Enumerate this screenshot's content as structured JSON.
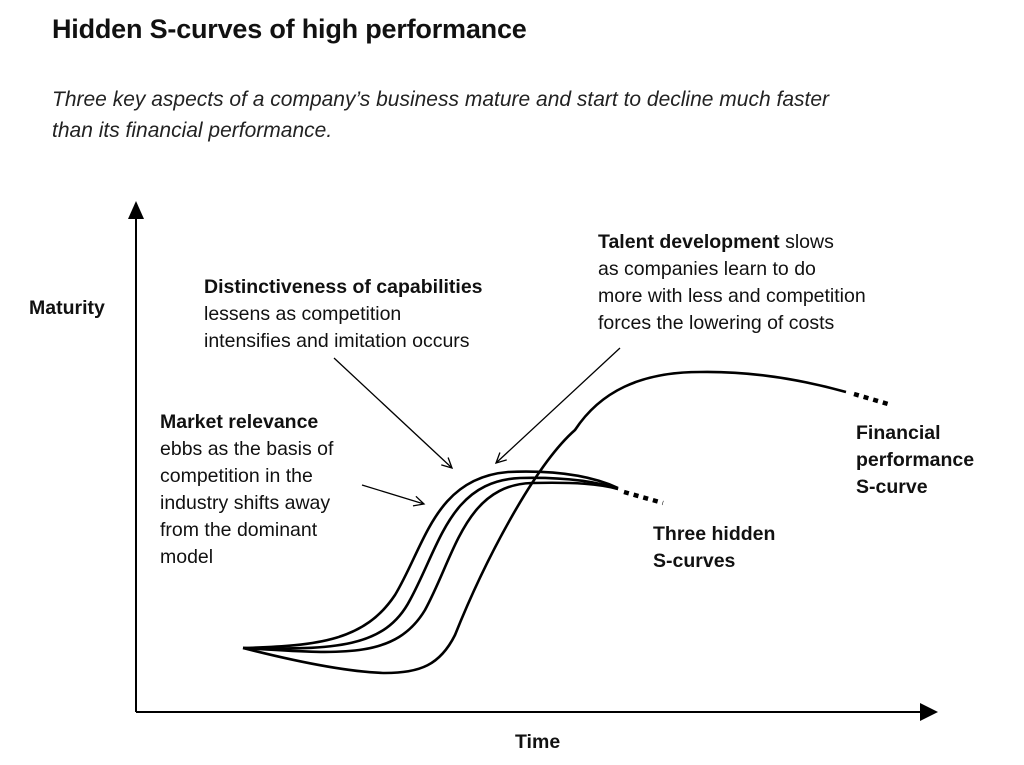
{
  "title": "Hidden S-curves of high performance",
  "subtitle_line1": "Three key aspects of a company’s business mature and start to decline much faster",
  "subtitle_line2": "than its financial performance.",
  "axes": {
    "y_label": "Maturity",
    "x_label": "Time"
  },
  "annotations": {
    "distinctiveness": {
      "heading": "Distinctiveness of capabilities",
      "line2": "lessens as competition",
      "line3": "intensifies and imitation occurs"
    },
    "talent": {
      "heading": "Talent development",
      "heading_rest": " slows",
      "line2": "as companies learn to do",
      "line3": "more with less and competition",
      "line4": "forces the lowering of costs"
    },
    "market": {
      "heading": "Market relevance",
      "line2": "ebbs as the basis of",
      "line3": "competition in the",
      "line4": "industry shifts away",
      "line5": "from the dominant",
      "line6": "model"
    }
  },
  "curve_labels": {
    "hidden_line1": "Three hidden",
    "hidden_line2": "S-curves",
    "financial_line1": "Financial",
    "financial_line2": "performance",
    "financial_line3": "S-curve"
  },
  "colors": {
    "ink": "#000000",
    "background": "#ffffff"
  }
}
